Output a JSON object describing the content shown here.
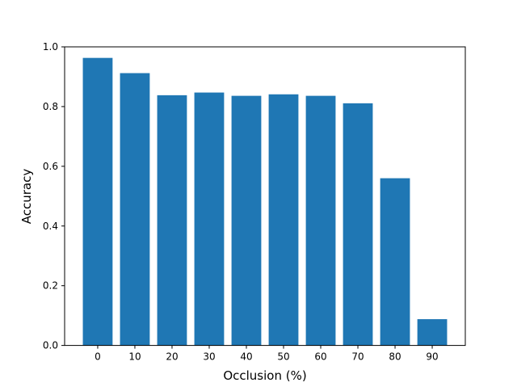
{
  "chart_data": {
    "type": "bar",
    "xlabel": "Occlusion (%)",
    "ylabel": "Accuracy",
    "categories": [
      "0",
      "10",
      "20",
      "30",
      "40",
      "50",
      "60",
      "70",
      "80",
      "90"
    ],
    "values": [
      0.963,
      0.912,
      0.838,
      0.847,
      0.836,
      0.841,
      0.836,
      0.811,
      0.56,
      0.088
    ],
    "ylim": [
      0.0,
      1.0
    ],
    "yticks": [
      "0.0",
      "0.2",
      "0.4",
      "0.6",
      "0.8",
      "1.0"
    ],
    "bar_color": "#1f77b4",
    "grid": false,
    "legend": "none"
  }
}
